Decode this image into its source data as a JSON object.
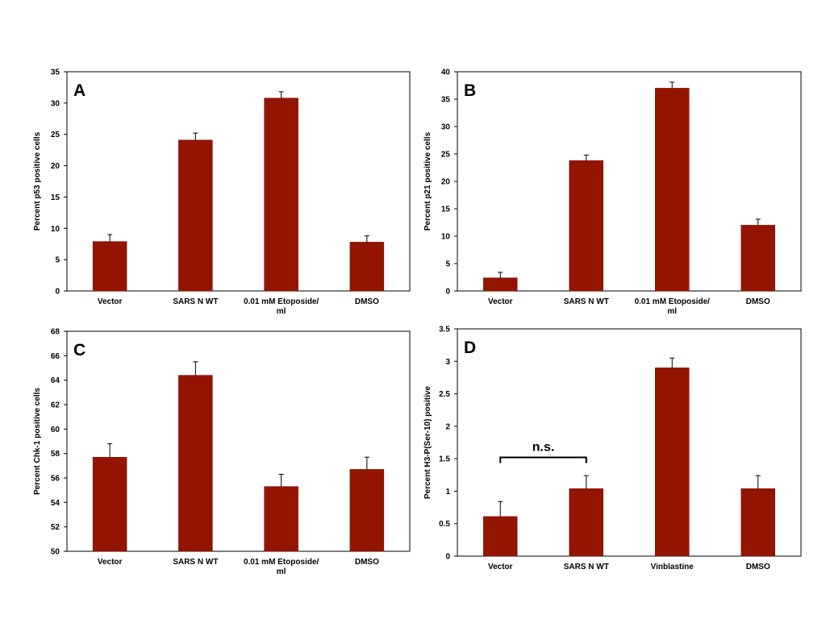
{
  "colors": {
    "bar": "#931500",
    "bar_edge": "#7a0f00",
    "axis": "#000000"
  },
  "chart_data": [
    {
      "type": "bar",
      "panel_label": "A",
      "categories": [
        [
          "Vector"
        ],
        [
          "SARS N WT"
        ],
        [
          "0.01 mM Etoposide/",
          "ml"
        ],
        [
          "DMSO"
        ]
      ],
      "values": [
        7.9,
        24.1,
        30.8,
        7.8
      ],
      "errors": [
        1.1,
        1.1,
        1.0,
        1.0
      ],
      "ylabel": "Percent p53 positive cells",
      "ylim": [
        0,
        35
      ],
      "yticks": [
        0,
        5,
        10,
        15,
        20,
        25,
        30,
        35
      ],
      "grid": false
    },
    {
      "type": "bar",
      "panel_label": "B",
      "categories": [
        [
          "Vector"
        ],
        [
          "SARS N WT"
        ],
        [
          "0.01 mM Etoposide/",
          "ml"
        ],
        [
          "DMSO"
        ]
      ],
      "values": [
        2.4,
        23.8,
        37.0,
        12.0
      ],
      "errors": [
        1.0,
        1.0,
        1.1,
        1.1
      ],
      "ylabel": "Percent p21 positive cells",
      "ylim": [
        0,
        40
      ],
      "yticks": [
        0,
        5,
        10,
        15,
        20,
        25,
        30,
        35,
        40
      ],
      "grid": false
    },
    {
      "type": "bar",
      "panel_label": "C",
      "categories": [
        [
          "Vector"
        ],
        [
          "SARS N WT"
        ],
        [
          "0.01 mM Etoposide/",
          "ml"
        ],
        [
          "DMSO"
        ]
      ],
      "values": [
        57.7,
        64.4,
        55.3,
        56.7
      ],
      "errors": [
        1.1,
        1.1,
        1.0,
        1.0
      ],
      "ylabel": "Percent Chk-1 positive cells",
      "ylim": [
        50,
        68
      ],
      "yticks": [
        50,
        52,
        54,
        56,
        58,
        60,
        62,
        64,
        66,
        68
      ],
      "grid": false
    },
    {
      "type": "bar",
      "panel_label": "D",
      "categories": [
        [
          "Vector"
        ],
        [
          "SARS N WT"
        ],
        [
          "Vinblastine"
        ],
        [
          "DMSO"
        ]
      ],
      "values": [
        0.61,
        1.04,
        2.9,
        1.04
      ],
      "errors": [
        0.23,
        0.2,
        0.15,
        0.2
      ],
      "ylabel": "Percent H3-P(Ser-10) positive",
      "ylim": [
        0,
        3.5
      ],
      "yticks": [
        "0",
        "0.5",
        "1",
        "1.5",
        "2",
        "2.5",
        "3",
        "3.5"
      ],
      "grid": false,
      "annotation": {
        "text": "n.s.",
        "between": [
          0,
          1
        ],
        "at_value": 1.52
      }
    }
  ]
}
